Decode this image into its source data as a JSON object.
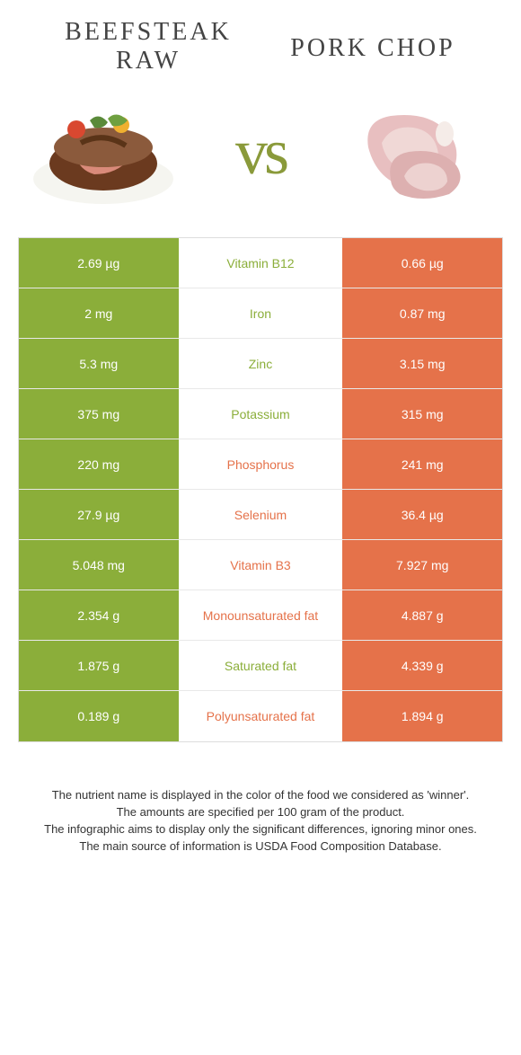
{
  "colors": {
    "left": "#8bae3a",
    "right": "#e5724a",
    "vs": "#8a9a3a"
  },
  "titles": {
    "left_line1": "Beefsteak",
    "left_line2": "raw",
    "right": "Pork chop"
  },
  "vs_label": "vs",
  "rows": [
    {
      "left": "2.69 µg",
      "mid": "Vitamin B12",
      "right": "0.66 µg",
      "winner": "left"
    },
    {
      "left": "2 mg",
      "mid": "Iron",
      "right": "0.87 mg",
      "winner": "left"
    },
    {
      "left": "5.3 mg",
      "mid": "Zinc",
      "right": "3.15 mg",
      "winner": "left"
    },
    {
      "left": "375 mg",
      "mid": "Potassium",
      "right": "315 mg",
      "winner": "left"
    },
    {
      "left": "220 mg",
      "mid": "Phosphorus",
      "right": "241 mg",
      "winner": "right"
    },
    {
      "left": "27.9 µg",
      "mid": "Selenium",
      "right": "36.4 µg",
      "winner": "right"
    },
    {
      "left": "5.048 mg",
      "mid": "Vitamin B3",
      "right": "7.927 mg",
      "winner": "right"
    },
    {
      "left": "2.354 g",
      "mid": "Monounsaturated fat",
      "right": "4.887 g",
      "winner": "right"
    },
    {
      "left": "1.875 g",
      "mid": "Saturated fat",
      "right": "4.339 g",
      "winner": "left"
    },
    {
      "left": "0.189 g",
      "mid": "Polyunsaturated fat",
      "right": "1.894 g",
      "winner": "right"
    }
  ],
  "footnotes": [
    "The nutrient name is displayed in the color of the food we considered as 'winner'.",
    "The amounts are specified per 100 gram of the product.",
    "The infographic aims to display only the significant differences, ignoring minor ones.",
    "The main source of information is USDA Food Composition Database."
  ]
}
